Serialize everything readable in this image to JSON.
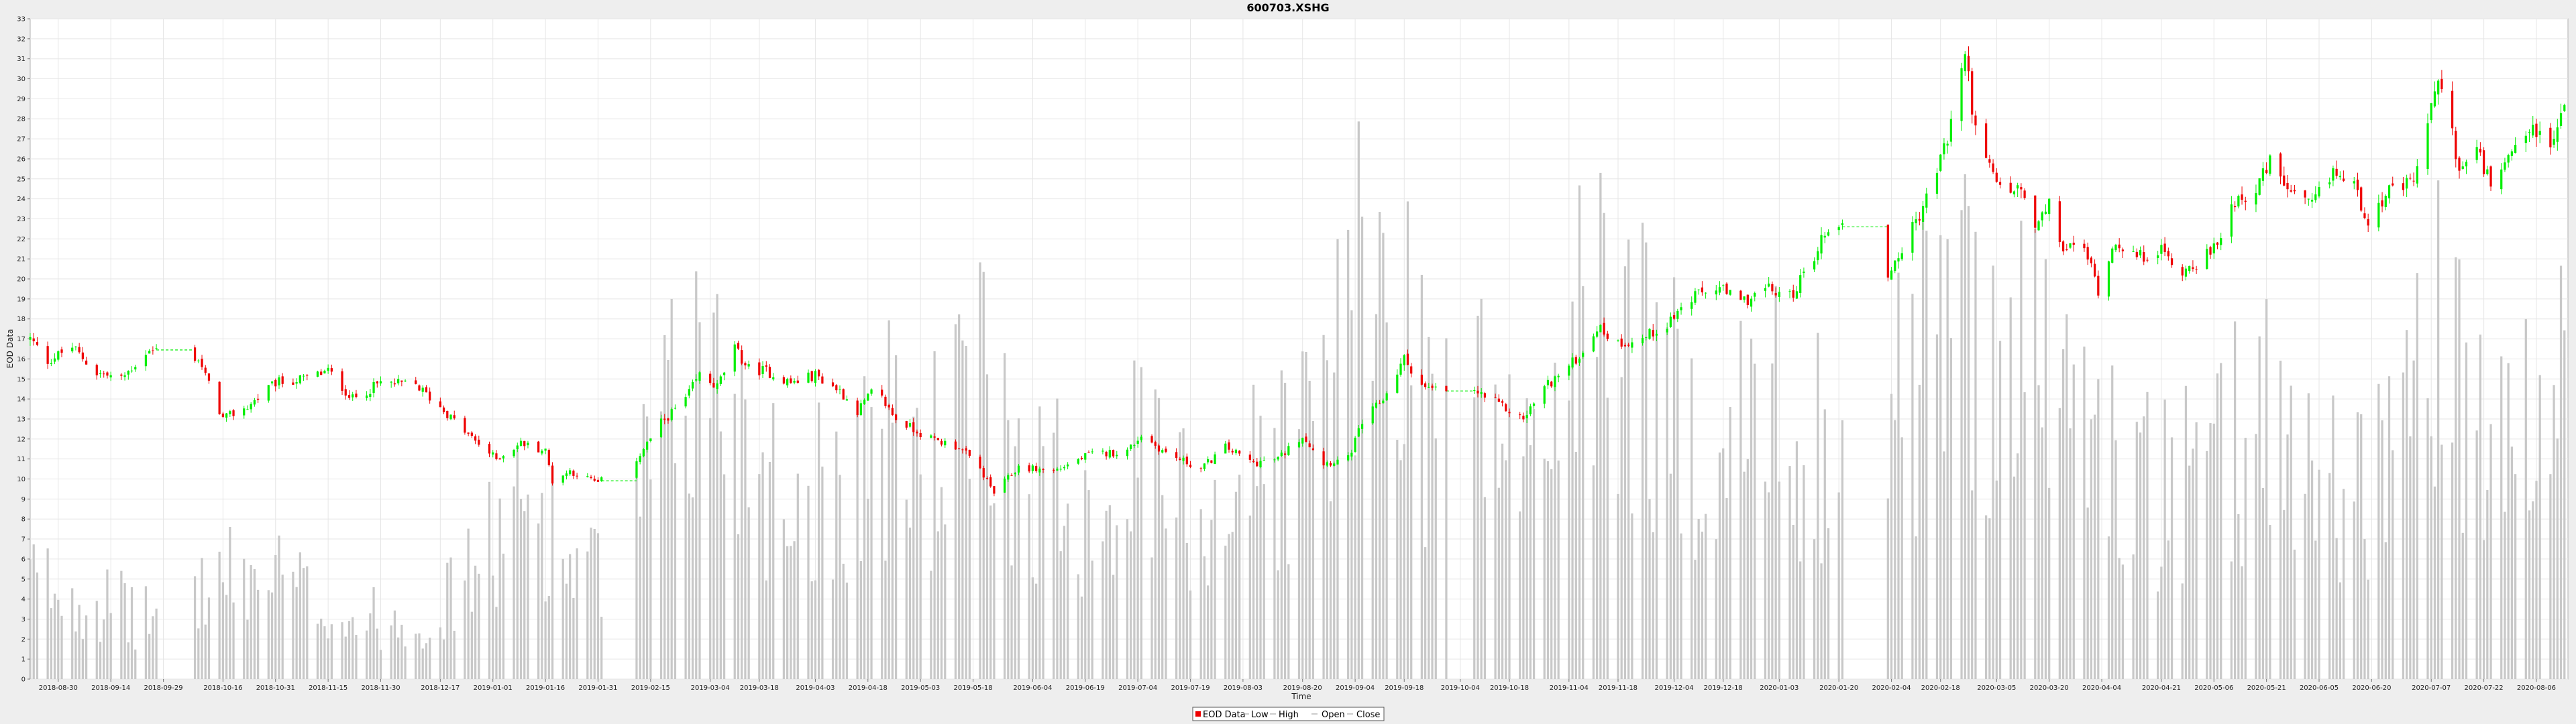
{
  "chart_data": {
    "type": "candlestick",
    "title": "600703.XSHG",
    "xlabel": "Time",
    "ylabel": "EOD Data",
    "ylim": [
      0,
      33
    ],
    "yticks": [
      0,
      1,
      2,
      3,
      4,
      5,
      6,
      7,
      8,
      9,
      10,
      11,
      12,
      13,
      14,
      15,
      16,
      17,
      18,
      19,
      20,
      21,
      22,
      23,
      24,
      25,
      26,
      27,
      28,
      29,
      30,
      31,
      32,
      33
    ],
    "xlim": [
      "2018-08-22",
      "2020-08-15"
    ],
    "x_tick_labels": [
      "2018-08-30",
      "2018-09-14",
      "2018-09-29",
      "2018-10-16",
      "2018-10-31",
      "2018-11-15",
      "2018-11-30",
      "2018-12-17",
      "2019-01-01",
      "2019-01-16",
      "2019-01-31",
      "2019-02-15",
      "2019-03-04",
      "2019-03-18",
      "2019-04-03",
      "2019-04-18",
      "2019-05-03",
      "2019-05-18",
      "2019-06-04",
      "2019-06-19",
      "2019-07-04",
      "2019-07-19",
      "2019-08-03",
      "2019-08-20",
      "2019-09-04",
      "2019-09-18",
      "2019-10-04",
      "2019-10-18",
      "2019-11-04",
      "2019-11-18",
      "2019-12-04",
      "2019-12-18",
      "2020-01-03",
      "2020-01-20",
      "2020-02-04",
      "2020-02-18",
      "2020-03-05",
      "2020-03-20",
      "2020-04-04",
      "2020-04-21",
      "2020-05-06",
      "2020-05-21",
      "2020-06-05",
      "2020-06-20",
      "2020-07-07",
      "2020-07-22",
      "2020-08-06"
    ],
    "grid": true,
    "legend_position": "bottom",
    "legend": [
      "EOD Data",
      "Low",
      "High",
      "Open",
      "Close"
    ],
    "colors": {
      "up": "#00ee00",
      "down": "#ee0000",
      "volume": "#c8c8c8",
      "plot_bg": "#ffffff",
      "grid": "#e6e6e6",
      "gap_line": "#00ee00",
      "page_bg": "#eeeeee"
    },
    "close_path": [
      [
        "2018-08-22",
        17.0
      ],
      [
        "2018-08-27",
        15.9
      ],
      [
        "2018-09-03",
        16.6
      ],
      [
        "2018-09-10",
        15.3
      ],
      [
        "2018-09-17",
        15.0
      ],
      [
        "2018-09-24",
        16.3
      ],
      [
        "2018-09-30",
        16.6
      ],
      [
        "2018-10-09",
        16.0
      ],
      [
        "2018-10-16",
        13.0
      ],
      [
        "2018-10-23",
        13.6
      ],
      [
        "2018-10-31",
        14.8
      ],
      [
        "2018-11-08",
        15.0
      ],
      [
        "2018-11-15",
        15.4
      ],
      [
        "2018-11-22",
        14.0
      ],
      [
        "2018-11-30",
        14.8
      ],
      [
        "2018-12-10",
        14.7
      ],
      [
        "2018-12-17",
        13.6
      ],
      [
        "2018-12-25",
        12.2
      ],
      [
        "2019-01-02",
        11.0
      ],
      [
        "2019-01-09",
        11.8
      ],
      [
        "2019-01-16",
        11.4
      ],
      [
        "2019-01-18",
        9.9
      ],
      [
        "2019-01-23",
        10.4
      ],
      [
        "2019-01-31",
        9.8
      ],
      [
        "2019-02-11",
        11.0
      ],
      [
        "2019-02-18",
        12.8
      ],
      [
        "2019-02-25",
        14.0
      ],
      [
        "2019-03-01",
        15.2
      ],
      [
        "2019-03-06",
        14.6
      ],
      [
        "2019-03-11",
        16.5
      ],
      [
        "2019-03-15",
        15.5
      ],
      [
        "2019-03-20",
        15.4
      ],
      [
        "2019-03-27",
        14.8
      ],
      [
        "2019-04-03",
        15.2
      ],
      [
        "2019-04-10",
        14.4
      ],
      [
        "2019-04-15",
        13.4
      ],
      [
        "2019-04-20",
        14.5
      ],
      [
        "2019-04-26",
        13.0
      ],
      [
        "2019-05-06",
        12.0
      ],
      [
        "2019-05-14",
        11.6
      ],
      [
        "2019-05-20",
        10.5
      ],
      [
        "2019-05-24",
        9.3
      ],
      [
        "2019-05-31",
        10.6
      ],
      [
        "2019-06-10",
        10.4
      ],
      [
        "2019-06-20",
        11.2
      ],
      [
        "2019-07-01",
        11.4
      ],
      [
        "2019-07-05",
        12.2
      ],
      [
        "2019-07-12",
        11.3
      ],
      [
        "2019-07-22",
        10.5
      ],
      [
        "2019-07-29",
        11.6
      ],
      [
        "2019-08-06",
        10.8
      ],
      [
        "2019-08-13",
        11.0
      ],
      [
        "2019-08-20",
        12.2
      ],
      [
        "2019-08-26",
        10.8
      ],
      [
        "2019-09-02",
        11.0
      ],
      [
        "2019-09-06",
        12.8
      ],
      [
        "2019-09-12",
        14.0
      ],
      [
        "2019-09-18",
        16.0
      ],
      [
        "2019-09-24",
        14.5
      ],
      [
        "2019-09-30",
        14.4
      ],
      [
        "2019-10-09",
        14.3
      ],
      [
        "2019-10-16",
        13.6
      ],
      [
        "2019-10-22",
        13.0
      ],
      [
        "2019-10-28",
        14.6
      ],
      [
        "2019-11-04",
        15.6
      ],
      [
        "2019-11-08",
        16.4
      ],
      [
        "2019-11-12",
        17.6
      ],
      [
        "2019-11-18",
        16.8
      ],
      [
        "2019-11-25",
        17.0
      ],
      [
        "2019-12-02",
        17.8
      ],
      [
        "2019-12-09",
        19.0
      ],
      [
        "2019-12-16",
        19.6
      ],
      [
        "2019-12-23",
        18.8
      ],
      [
        "2019-12-30",
        19.5
      ],
      [
        "2020-01-06",
        19.1
      ],
      [
        "2020-01-10",
        20.2
      ],
      [
        "2020-01-17",
        22.6
      ],
      [
        "2020-01-23",
        22.6
      ],
      [
        "2020-02-03",
        20.2
      ],
      [
        "2020-02-10",
        22.5
      ],
      [
        "2020-02-14",
        24.0
      ],
      [
        "2020-02-20",
        27.0
      ],
      [
        "2020-02-25",
        31.3
      ],
      [
        "2020-02-28",
        27.4
      ],
      [
        "2020-03-02",
        25.8
      ],
      [
        "2020-03-06",
        24.5
      ],
      [
        "2020-03-12",
        24.4
      ],
      [
        "2020-03-16",
        22.5
      ],
      [
        "2020-03-20",
        23.6
      ],
      [
        "2020-03-24",
        21.5
      ],
      [
        "2020-03-30",
        21.6
      ],
      [
        "2020-04-03",
        19.5
      ],
      [
        "2020-04-08",
        22.0
      ],
      [
        "2020-04-14",
        21.0
      ],
      [
        "2020-04-20",
        21.5
      ],
      [
        "2020-04-27",
        20.4
      ],
      [
        "2020-05-06",
        21.4
      ],
      [
        "2020-05-12",
        24.0
      ],
      [
        "2020-05-18",
        24.4
      ],
      [
        "2020-05-22",
        25.8
      ],
      [
        "2020-05-29",
        24.0
      ],
      [
        "2020-06-03",
        23.6
      ],
      [
        "2020-06-09",
        25.4
      ],
      [
        "2020-06-15",
        24.6
      ],
      [
        "2020-06-19",
        23.0
      ],
      [
        "2020-06-24",
        24.2
      ],
      [
        "2020-07-02",
        24.8
      ],
      [
        "2020-07-06",
        28.0
      ],
      [
        "2020-07-10",
        30.0
      ],
      [
        "2020-07-15",
        25.4
      ],
      [
        "2020-07-20",
        26.4
      ],
      [
        "2020-07-24",
        24.6
      ],
      [
        "2020-07-30",
        26.0
      ],
      [
        "2020-08-05",
        27.6
      ],
      [
        "2020-08-10",
        26.4
      ],
      [
        "2020-08-14",
        28.8
      ]
    ],
    "gaps": [
      [
        "2018-09-27",
        "2018-10-08"
      ],
      [
        "2019-02-01",
        "2019-02-11"
      ],
      [
        "2019-09-30",
        "2019-10-08"
      ],
      [
        "2020-01-21",
        "2020-02-03"
      ]
    ],
    "volume_scale_note": "volume bars are drawn relative to the price axis",
    "volume_levels": [
      [
        "2018-08-22",
        5
      ],
      [
        "2018-09-10",
        4
      ],
      [
        "2018-09-24",
        3
      ],
      [
        "2018-10-16",
        5
      ],
      [
        "2018-11-01",
        5
      ],
      [
        "2018-11-20",
        3
      ],
      [
        "2018-12-15",
        3
      ],
      [
        "2018-12-28",
        6
      ],
      [
        "2019-01-14",
        9
      ],
      [
        "2019-01-22",
        6
      ],
      [
        "2019-02-01",
        5
      ],
      [
        "2019-02-15",
        10
      ],
      [
        "2019-03-01",
        16
      ],
      [
        "2019-03-10",
        14
      ],
      [
        "2019-03-25",
        9
      ],
      [
        "2019-04-10",
        10
      ],
      [
        "2019-04-20",
        12
      ],
      [
        "2019-05-06",
        11
      ],
      [
        "2019-05-20",
        14
      ],
      [
        "2019-06-04",
        10
      ],
      [
        "2019-06-20",
        9
      ],
      [
        "2019-07-05",
        11
      ],
      [
        "2019-07-20",
        8
      ],
      [
        "2019-08-03",
        10
      ],
      [
        "2019-08-20",
        12
      ],
      [
        "2019-09-04",
        18
      ],
      [
        "2019-09-15",
        20
      ],
      [
        "2019-09-25",
        14
      ],
      [
        "2019-10-10",
        14
      ],
      [
        "2019-10-22",
        10
      ],
      [
        "2019-11-04",
        16
      ],
      [
        "2019-11-18",
        18
      ],
      [
        "2019-12-04",
        13
      ],
      [
        "2019-12-18",
        12
      ],
      [
        "2020-01-03",
        13
      ],
      [
        "2020-01-16",
        12
      ],
      [
        "2020-02-04",
        13
      ],
      [
        "2020-02-20",
        18
      ],
      [
        "2020-03-05",
        17
      ],
      [
        "2020-03-20",
        15
      ],
      [
        "2020-04-06",
        11
      ],
      [
        "2020-04-21",
        9
      ],
      [
        "2020-05-06",
        10
      ],
      [
        "2020-05-20",
        14
      ],
      [
        "2020-06-05",
        10
      ],
      [
        "2020-06-20",
        10
      ],
      [
        "2020-07-07",
        17
      ],
      [
        "2020-07-22",
        11
      ],
      [
        "2020-08-06",
        12
      ],
      [
        "2020-08-15",
        14
      ]
    ]
  }
}
